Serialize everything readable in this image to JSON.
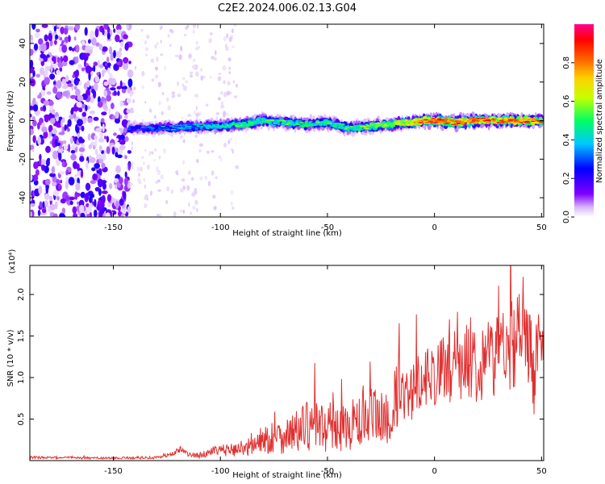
{
  "figure": {
    "title": "C2E2.2024.006.02.13.G04"
  },
  "chart_data": [
    {
      "type": "heatmap",
      "xlabel": "Height of straight line (km)",
      "ylabel": "Frequency (Hz)",
      "xlim": [
        -189,
        51
      ],
      "ylim": [
        -50,
        50
      ],
      "x_ticks": [
        -150,
        -100,
        -50,
        0,
        50
      ],
      "y_ticks": [
        -40,
        -20,
        0,
        20,
        40
      ],
      "colorbar": {
        "label": "Normalized spectral amplitude",
        "range": [
          0,
          1
        ],
        "ticks": [
          0.0,
          0.2,
          0.4,
          0.6,
          0.8
        ],
        "colormap": [
          "#ffffff",
          "#d8b8f8",
          "#8000ff",
          "#0000ff",
          "#00c8ff",
          "#00ff60",
          "#c8ff00",
          "#ffd000",
          "#ff6000",
          "#ff0000",
          "#ff0090"
        ]
      },
      "ridge": {
        "x": [
          -143,
          -130,
          -120,
          -110,
          -100,
          -90,
          -80,
          -70,
          -60,
          -50,
          -40,
          -30,
          -20,
          -15,
          -10,
          -5,
          0,
          10,
          20,
          30,
          40,
          50
        ],
        "y": [
          -4,
          -4,
          -3.5,
          -3,
          -3,
          -2,
          0,
          -1,
          -2,
          -1,
          -4,
          -3,
          -2,
          -1,
          -1,
          0,
          0,
          -1,
          0,
          0,
          0,
          0
        ],
        "peak_amplitude": [
          0.3,
          0.35,
          0.4,
          0.4,
          0.45,
          0.5,
          0.5,
          0.5,
          0.5,
          0.5,
          0.5,
          0.55,
          0.6,
          0.6,
          0.7,
          0.8,
          0.85,
          0.8,
          0.8,
          0.8,
          0.85,
          0.8
        ]
      },
      "noise_region": {
        "x_from": -189,
        "x_to": -142,
        "amplitude": 0.25
      }
    },
    {
      "type": "line",
      "xlabel": "Height of straight line (km)",
      "ylabel": "SNR (10 * v/v)",
      "y_scale_label": "(x10⁴)",
      "xlim": [
        -189,
        51
      ],
      "ylim": [
        0,
        23500
      ],
      "x_ticks": [
        -150,
        -100,
        -50,
        0,
        50
      ],
      "y_ticks": [
        5000,
        10000,
        15000,
        20000
      ],
      "y_tick_labels": [
        "0.5",
        "1.0",
        "1.5",
        "2.0"
      ],
      "series": [
        {
          "color": "#e03030",
          "x": [
            -189,
            -180,
            -170,
            -160,
            -150,
            -140,
            -130,
            -122,
            -118,
            -115,
            -110,
            -105,
            -100,
            -95,
            -90,
            -85,
            -80,
            -75,
            -70,
            -65,
            -60,
            -55,
            -50,
            -45,
            -40,
            -35,
            -30,
            -25,
            -20,
            -16,
            -15,
            -14,
            -13,
            -12,
            -10,
            -5,
            0,
            5,
            10,
            15,
            20,
            25,
            30,
            35,
            38,
            40,
            43,
            45,
            47,
            48,
            50,
            51
          ],
          "mean": [
            400,
            350,
            350,
            300,
            300,
            350,
            350,
            800,
            1500,
            700,
            600,
            1000,
            1200,
            1300,
            1500,
            1800,
            2500,
            2800,
            3000,
            3500,
            4000,
            4200,
            4000,
            3800,
            4200,
            4500,
            4800,
            5000,
            5500,
            9000,
            12000,
            7000,
            8000,
            6000,
            9000,
            10000,
            10500,
            11000,
            11500,
            12000,
            12000,
            12500,
            13000,
            14000,
            15500,
            14000,
            13000,
            12500,
            11000,
            14000,
            13000,
            14000
          ],
          "amplitude": [
            150,
            150,
            150,
            120,
            120,
            150,
            150,
            300,
            400,
            300,
            300,
            500,
            700,
            800,
            1000,
            1200,
            1800,
            2000,
            2200,
            2500,
            3000,
            3000,
            3000,
            3000,
            3000,
            3300,
            3500,
            3800,
            4000,
            5000,
            4000,
            3000,
            3000,
            3000,
            3500,
            3500,
            4000,
            4000,
            4500,
            4500,
            5000,
            5000,
            5000,
            5500,
            7000,
            6000,
            6000,
            6000,
            6000,
            5000,
            4500,
            4000
          ]
        }
      ]
    }
  ]
}
